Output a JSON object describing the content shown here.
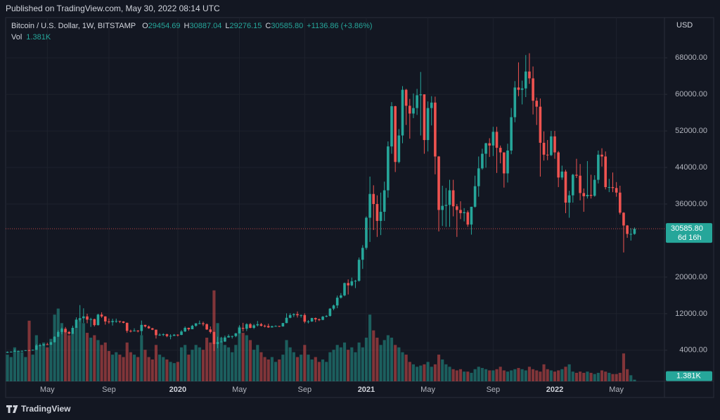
{
  "header": {
    "published": "Published on TradingView.com, May 30, 2022 08:14 UTC"
  },
  "chart_data": {
    "type": "candlestick",
    "symbol": "Bitcoin / U.S. Dollar, 1W, BITSTAMP",
    "ohlc_legend": [
      {
        "label": "O",
        "value": "29454.69"
      },
      {
        "label": "H",
        "value": "30887.04"
      },
      {
        "label": "L",
        "value": "29276.15"
      },
      {
        "label": "C",
        "value": "30585.80"
      }
    ],
    "change": "+1136.86 (+3.86%)",
    "volume_legend": {
      "label": "Vol",
      "value": "1.381K"
    },
    "currency": "USD",
    "last_price_label": "30585.80",
    "countdown": "6d 16h",
    "volume_axis_label": "1.381K",
    "up_color": "#26a69a",
    "down_color": "#ef5350",
    "grid": true,
    "ylim": [
      -2800,
      76800
    ],
    "yticks": [
      {
        "value": 68000,
        "label": "68000.00"
      },
      {
        "value": 60000,
        "label": "60000.00"
      },
      {
        "value": 52000,
        "label": "52000.00"
      },
      {
        "value": 44000,
        "label": "44000.00"
      },
      {
        "value": 36000,
        "label": "36000.00"
      },
      {
        "value": 20000,
        "label": "20000.00"
      },
      {
        "value": 12000,
        "label": "12000.00"
      },
      {
        "value": 4000,
        "label": "4000.00"
      }
    ],
    "y2lim": [
      0,
      300
    ],
    "volume_axis": "y2",
    "categories": [
      null,
      null,
      null,
      null,
      null,
      null,
      null,
      null,
      null,
      null,
      null,
      "May",
      null,
      null,
      null,
      null,
      null,
      null,
      null,
      null,
      null,
      null,
      null,
      null,
      null,
      null,
      null,
      null,
      "Sep",
      null,
      null,
      null,
      null,
      null,
      null,
      null,
      null,
      null,
      null,
      null,
      null,
      null,
      null,
      null,
      null,
      null,
      null,
      "2020",
      null,
      null,
      null,
      null,
      null,
      null,
      null,
      null,
      null,
      null,
      null,
      null,
      null,
      null,
      null,
      null,
      "May",
      null,
      null,
      null,
      null,
      null,
      null,
      null,
      null,
      null,
      null,
      null,
      null,
      null,
      null,
      null,
      null,
      null,
      "Sep",
      null,
      null,
      null,
      null,
      null,
      null,
      null,
      null,
      null,
      null,
      null,
      null,
      null,
      null,
      null,
      null,
      "2021",
      null,
      null,
      null,
      null,
      null,
      null,
      null,
      null,
      null,
      null,
      null,
      null,
      null,
      null,
      null,
      null,
      "May",
      null,
      null,
      null,
      null,
      null,
      null,
      null,
      null,
      null,
      null,
      null,
      null,
      null,
      null,
      null,
      null,
      null,
      "Sep",
      null,
      null,
      null,
      null,
      null,
      null,
      null,
      null,
      null,
      null,
      null,
      null,
      null,
      null,
      null,
      null,
      "2022",
      null,
      null,
      null,
      null,
      null,
      null,
      null,
      null,
      null,
      null,
      null,
      null,
      null,
      null,
      null,
      null,
      "May",
      null,
      null,
      null,
      null,
      null
    ],
    "open": [
      3450,
      3640,
      3680,
      3850,
      3850,
      3880,
      4000,
      3990,
      4090,
      5050,
      5050,
      5300,
      5200,
      5750,
      6960,
      8000,
      8700,
      8000,
      7620,
      8900,
      10700,
      11000,
      11400,
      10700,
      10800,
      9500,
      11800,
      11400,
      10300,
      10150,
      10400,
      10400,
      10300,
      10000,
      8240,
      8200,
      8300,
      8200,
      9550,
      9200,
      8800,
      8500,
      7300,
      7400,
      7500,
      7100,
      7150,
      7400,
      7350,
      8100,
      8900,
      8600,
      9350,
      9900,
      9900,
      9700,
      8550,
      8000,
      5350,
      5800,
      5900,
      6800,
      7100,
      7100,
      7700,
      8900,
      8700,
      9700,
      8900,
      9450,
      9700,
      9350,
      9300,
      9000,
      9250,
      9300,
      9200,
      9950,
      11100,
      11700,
      11900,
      11650,
      11700,
      10250,
      10300,
      11050,
      10750,
      10650,
      11350,
      11500,
      13100,
      13800,
      15500,
      16000,
      18700,
      18200,
      19100,
      19200,
      23800,
      26400,
      33000,
      38200,
      36000,
      32300,
      34300,
      39000,
      48600,
      57400,
      45200,
      51000,
      61000,
      57500,
      55800,
      57000,
      59800,
      60000,
      50000,
      57000,
      58200,
      46400,
      34700,
      35600,
      35800,
      39000,
      35500,
      34700,
      34000,
      34200,
      31500,
      35400,
      39900,
      43800,
      47000,
      49300,
      48800,
      51800,
      48300,
      47300,
      42700,
      47700,
      55000,
      61500,
      61000,
      61300,
      65000,
      63500,
      58600,
      57300,
      49400,
      46800,
      46700,
      50800,
      47300,
      41800,
      43100,
      36300,
      37900,
      42400,
      42200,
      38400,
      37700,
      38000,
      37800,
      41300,
      46800,
      46400,
      39700,
      39700,
      39500,
      38500,
      34100,
      31300,
      29450,
      29454.69
    ],
    "high": [
      3730,
      3730,
      4200,
      3920,
      3930,
      4020,
      4090,
      4150,
      5350,
      5460,
      5340,
      5630,
      5840,
      7050,
      8350,
      8950,
      9080,
      8200,
      9380,
      11200,
      13880,
      13180,
      12000,
      11100,
      10900,
      12000,
      12300,
      11450,
      10950,
      10900,
      10920,
      10400,
      10350,
      10060,
      8500,
      8800,
      8400,
      10500,
      9550,
      9420,
      8900,
      8500,
      7700,
      7700,
      7620,
      7500,
      7550,
      7500,
      8400,
      9200,
      8950,
      9550,
      9900,
      10500,
      10250,
      9850,
      9200,
      8050,
      6950,
      6930,
      7200,
      7480,
      7170,
      7770,
      9480,
      10000,
      9900,
      9950,
      9750,
      10400,
      9980,
      9600,
      9800,
      9380,
      9450,
      9320,
      9980,
      12080,
      12100,
      12100,
      12480,
      11800,
      12080,
      10600,
      11100,
      11150,
      10950,
      11500,
      11700,
      13230,
      14000,
      15960,
      16500,
      18800,
      19500,
      19900,
      19400,
      24300,
      27000,
      33300,
      42000,
      40100,
      37900,
      38500,
      40900,
      49700,
      58300,
      57500,
      52400,
      61800,
      61200,
      59000,
      60200,
      61200,
      64900,
      60000,
      58450,
      59600,
      59500,
      46500,
      40000,
      39500,
      41300,
      41300,
      36000,
      36600,
      35100,
      34600,
      35400,
      42200,
      46400,
      48100,
      49400,
      50400,
      52900,
      52900,
      48800,
      47300,
      49200,
      57000,
      62900,
      67000,
      63000,
      68600,
      69000,
      66100,
      59300,
      59100,
      51900,
      50000,
      52000,
      52000,
      47600,
      44400,
      43500,
      38900,
      42600,
      45900,
      44750,
      39400,
      45400,
      42400,
      42300,
      47700,
      48200,
      47500,
      41500,
      42900,
      40800,
      40000,
      34200,
      31400,
      30700,
      30887.04
    ],
    "low": [
      3400,
      3580,
      3650,
      3730,
      3700,
      3840,
      3930,
      3950,
      4080,
      4950,
      4950,
      5150,
      5150,
      5700,
      6900,
      7500,
      7780,
      7450,
      7530,
      8900,
      10300,
      10000,
      9900,
      9100,
      9200,
      9400,
      11100,
      9600,
      9800,
      9400,
      10000,
      9950,
      9900,
      7800,
      7900,
      8100,
      7900,
      7300,
      9000,
      8700,
      8400,
      6550,
      7150,
      7100,
      6850,
      6400,
      7100,
      7000,
      7300,
      8000,
      8250,
      8600,
      9130,
      9700,
      9300,
      8430,
      7650,
      3850,
      4450,
      5700,
      5800,
      6780,
      6560,
      6850,
      7650,
      8100,
      8200,
      8800,
      8650,
      9200,
      9200,
      9000,
      8900,
      8950,
      9150,
      9080,
      9170,
      9900,
      11000,
      11250,
      11150,
      11150,
      9900,
      9860,
      10200,
      10150,
      10380,
      10570,
      11200,
      11380,
      12750,
      13200,
      15300,
      15800,
      16200,
      18000,
      17600,
      19000,
      21800,
      26000,
      27700,
      30300,
      28800,
      29200,
      32300,
      37400,
      47000,
      43000,
      44900,
      49300,
      53300,
      50300,
      54800,
      55500,
      51000,
      47000,
      47500,
      53200,
      42500,
      30000,
      31200,
      31000,
      31000,
      33300,
      28800,
      32700,
      32200,
      31000,
      29300,
      35200,
      37600,
      43500,
      43950,
      46300,
      46500,
      42800,
      44900,
      39600,
      40700,
      46900,
      53900,
      59600,
      57800,
      59400,
      62300,
      55600,
      53300,
      42000,
      45500,
      45600,
      46500,
      45900,
      39700,
      41300,
      34000,
      33000,
      36300,
      41700,
      36800,
      34300,
      37200,
      37200,
      37600,
      40500,
      44200,
      39200,
      38600,
      38600,
      37600,
      33700,
      25400,
      28600,
      28000,
      29276.15
    ],
    "close": [
      3640,
      3680,
      3850,
      3850,
      3880,
      4000,
      3990,
      4090,
      5050,
      5050,
      5300,
      5200,
      5750,
      6960,
      8000,
      8700,
      8000,
      7620,
      8900,
      10700,
      11000,
      11400,
      10700,
      10800,
      9500,
      11800,
      11400,
      10300,
      10150,
      10400,
      10400,
      10300,
      10000,
      8240,
      8200,
      8300,
      8200,
      9550,
      9200,
      8800,
      8500,
      7300,
      7400,
      7500,
      7100,
      7150,
      7400,
      7350,
      8100,
      8900,
      8600,
      9350,
      9900,
      9900,
      9700,
      8550,
      8000,
      5350,
      5800,
      5900,
      6800,
      7100,
      7100,
      7700,
      8900,
      8700,
      9700,
      8900,
      9450,
      9700,
      9350,
      9300,
      9000,
      9250,
      9300,
      9200,
      9950,
      11100,
      11700,
      11900,
      11650,
      11700,
      10250,
      10300,
      11050,
      10750,
      10650,
      11350,
      11500,
      13100,
      13800,
      15500,
      16000,
      18700,
      18200,
      19100,
      19200,
      23800,
      26400,
      33000,
      38200,
      36000,
      32300,
      34300,
      39000,
      48600,
      57400,
      45200,
      51000,
      61000,
      57500,
      55800,
      57000,
      59800,
      60000,
      50000,
      57000,
      58200,
      46400,
      34700,
      35600,
      35800,
      39000,
      35500,
      34700,
      34000,
      34200,
      31500,
      35400,
      39900,
      43800,
      47000,
      49300,
      48800,
      51800,
      48300,
      47300,
      42700,
      47700,
      55000,
      61500,
      61000,
      61300,
      65000,
      63500,
      58600,
      57300,
      49400,
      46800,
      46700,
      50800,
      47300,
      41800,
      43100,
      36300,
      37900,
      42400,
      42200,
      38400,
      37700,
      38000,
      37800,
      41300,
      46800,
      46400,
      39700,
      39700,
      39500,
      38500,
      34100,
      31300,
      29450,
      29455,
      30585.8
    ],
    "volume": [
      22,
      20,
      28,
      25,
      24,
      20,
      50,
      22,
      38,
      30,
      32,
      28,
      35,
      55,
      60,
      48,
      42,
      38,
      40,
      45,
      52,
      48,
      40,
      36,
      38,
      34,
      30,
      32,
      25,
      22,
      24,
      22,
      20,
      32,
      24,
      22,
      20,
      38,
      26,
      20,
      18,
      30,
      22,
      20,
      18,
      16,
      15,
      16,
      28,
      30,
      22,
      26,
      30,
      28,
      26,
      36,
      32,
      75,
      48,
      36,
      30,
      28,
      24,
      30,
      45,
      40,
      38,
      34,
      26,
      30,
      24,
      20,
      18,
      20,
      16,
      18,
      22,
      34,
      28,
      24,
      20,
      22,
      30,
      22,
      18,
      20,
      16,
      18,
      16,
      24,
      26,
      30,
      28,
      32,
      26,
      28,
      24,
      32,
      28,
      36,
      55,
      42,
      36,
      30,
      34,
      38,
      36,
      30,
      28,
      24,
      22,
      16,
      14,
      12,
      13,
      14,
      16,
      12,
      14,
      22,
      18,
      14,
      12,
      10,
      9,
      10,
      8,
      8,
      7,
      10,
      12,
      11,
      10,
      9,
      9,
      10,
      12,
      9,
      8,
      9,
      10,
      11,
      10,
      9,
      12,
      10,
      9,
      8,
      14,
      10,
      9,
      8,
      9,
      10,
      12,
      14,
      8,
      7,
      8,
      7,
      8,
      7,
      6,
      7,
      9,
      8,
      7,
      6,
      6,
      7,
      23,
      10,
      5,
      1.381
    ]
  },
  "footer": {
    "brand": "TradingView"
  }
}
